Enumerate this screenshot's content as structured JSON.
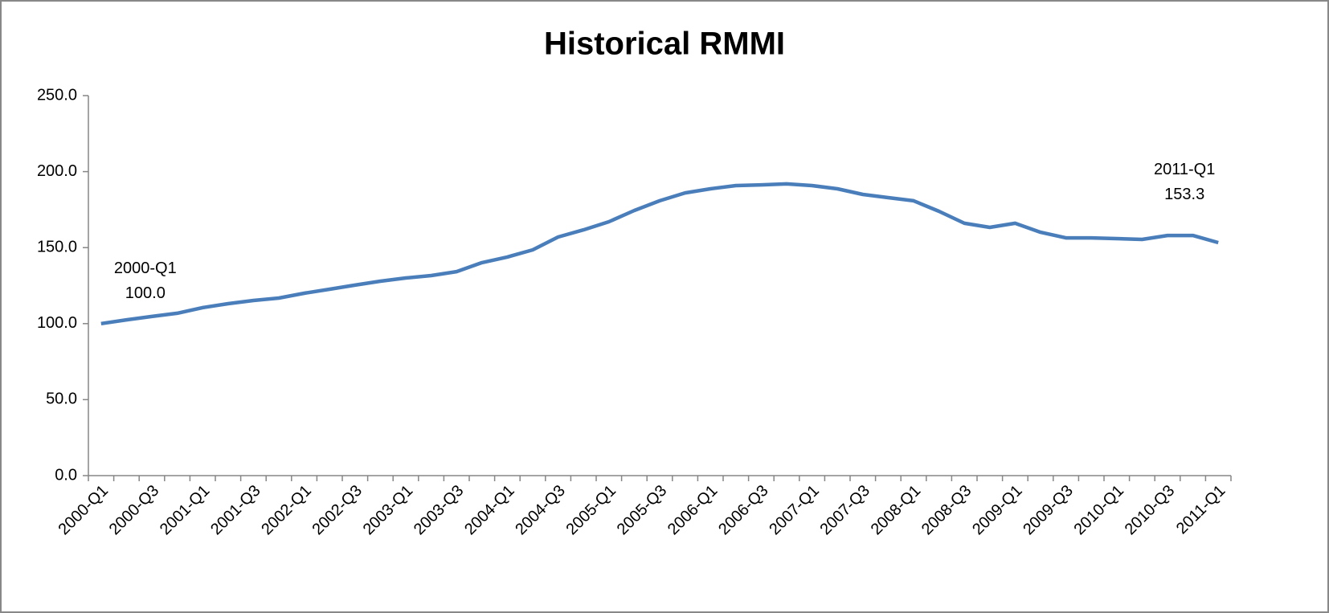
{
  "chart_data": {
    "type": "line",
    "title": "Historical RMMI",
    "categories": [
      "2000-Q1",
      null,
      "2000-Q3",
      null,
      "2001-Q1",
      null,
      "2001-Q3",
      null,
      "2002-Q1",
      null,
      "2002-Q3",
      null,
      "2003-Q1",
      null,
      "2003-Q3",
      null,
      "2004-Q1",
      null,
      "2004-Q3",
      null,
      "2005-Q1",
      null,
      "2005-Q3",
      null,
      "2006-Q1",
      null,
      "2006-Q3",
      null,
      "2007-Q1",
      null,
      "2007-Q3",
      null,
      "2008-Q1",
      null,
      "2008-Q3",
      null,
      "2009-Q1",
      null,
      "2009-Q3",
      null,
      "2010-Q1",
      null,
      "2010-Q3",
      null,
      "2011-Q1"
    ],
    "series": [
      {
        "name": "RMMI",
        "color": "#4a7ebb",
        "values": [
          100.0,
          102.5,
          104.7,
          106.8,
          110.5,
          113.1,
          115.2,
          116.8,
          120.0,
          122.6,
          125.3,
          127.9,
          130.0,
          131.6,
          134.2,
          140.1,
          143.8,
          148.5,
          157.0,
          161.7,
          167.0,
          174.4,
          180.8,
          186.0,
          188.7,
          190.8,
          191.3,
          191.9,
          190.8,
          188.7,
          185.0,
          182.9,
          180.8,
          173.9,
          166.0,
          163.3,
          166.0,
          160.1,
          156.4,
          156.4,
          155.9,
          155.4,
          158.0,
          158.0,
          153.3
        ],
        "value_labels": [
          "100.0",
          null,
          null,
          null,
          null,
          null,
          null,
          null,
          null,
          null,
          null,
          null,
          null,
          null,
          null,
          null,
          null,
          null,
          null,
          null,
          null,
          null,
          null,
          null,
          null,
          null,
          null,
          null,
          null,
          null,
          null,
          null,
          null,
          null,
          null,
          null,
          null,
          null,
          null,
          null,
          null,
          null,
          null,
          null,
          "153.3"
        ]
      }
    ],
    "ylim": [
      0,
      250
    ],
    "yticks": [
      {
        "value": 0,
        "label": "0.0"
      },
      {
        "value": 50,
        "label": "50.0"
      },
      {
        "value": 100,
        "label": "100.0"
      },
      {
        "value": 150,
        "label": "150.0"
      },
      {
        "value": 200,
        "label": "200.0"
      },
      {
        "value": 250,
        "label": "250.0"
      }
    ],
    "grid": false,
    "legend": false
  }
}
